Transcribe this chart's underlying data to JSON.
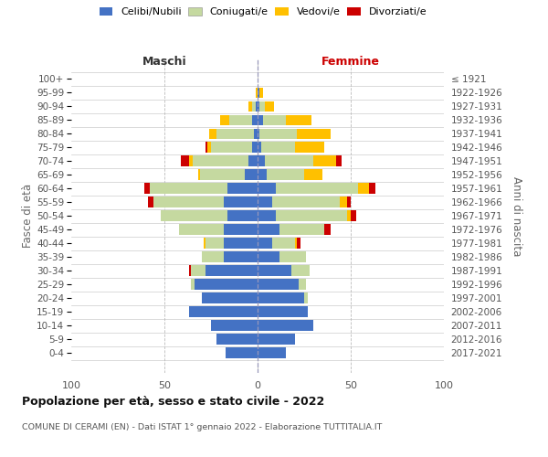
{
  "age_groups": [
    "0-4",
    "5-9",
    "10-14",
    "15-19",
    "20-24",
    "25-29",
    "30-34",
    "35-39",
    "40-44",
    "45-49",
    "50-54",
    "55-59",
    "60-64",
    "65-69",
    "70-74",
    "75-79",
    "80-84",
    "85-89",
    "90-94",
    "95-99",
    "100+"
  ],
  "birth_years": [
    "2017-2021",
    "2012-2016",
    "2007-2011",
    "2002-2006",
    "1997-2001",
    "1992-1996",
    "1987-1991",
    "1982-1986",
    "1977-1981",
    "1972-1976",
    "1967-1971",
    "1962-1966",
    "1957-1961",
    "1952-1956",
    "1947-1951",
    "1942-1946",
    "1937-1941",
    "1932-1936",
    "1927-1931",
    "1922-1926",
    "≤ 1921"
  ],
  "maschi": {
    "celibi": [
      17,
      22,
      25,
      37,
      30,
      34,
      28,
      18,
      18,
      18,
      16,
      18,
      16,
      7,
      5,
      3,
      2,
      3,
      1,
      0,
      0
    ],
    "coniugati": [
      0,
      0,
      0,
      0,
      0,
      2,
      8,
      12,
      10,
      24,
      36,
      38,
      42,
      24,
      30,
      22,
      20,
      12,
      2,
      0,
      0
    ],
    "vedovi": [
      0,
      0,
      0,
      0,
      0,
      0,
      0,
      0,
      1,
      0,
      0,
      0,
      0,
      1,
      2,
      2,
      4,
      5,
      2,
      1,
      0
    ],
    "divorziati": [
      0,
      0,
      0,
      0,
      0,
      0,
      1,
      0,
      0,
      0,
      0,
      3,
      3,
      0,
      4,
      1,
      0,
      0,
      0,
      0,
      0
    ]
  },
  "femmine": {
    "nubili": [
      15,
      20,
      30,
      27,
      25,
      22,
      18,
      12,
      8,
      12,
      10,
      8,
      10,
      5,
      4,
      2,
      1,
      3,
      1,
      1,
      0
    ],
    "coniugate": [
      0,
      0,
      0,
      0,
      2,
      4,
      10,
      14,
      12,
      24,
      38,
      36,
      44,
      20,
      26,
      18,
      20,
      12,
      3,
      0,
      0
    ],
    "vedove": [
      0,
      0,
      0,
      0,
      0,
      0,
      0,
      0,
      1,
      0,
      2,
      4,
      6,
      10,
      12,
      16,
      18,
      14,
      5,
      2,
      0
    ],
    "divorziate": [
      0,
      0,
      0,
      0,
      0,
      0,
      0,
      0,
      2,
      3,
      3,
      2,
      3,
      0,
      3,
      0,
      0,
      0,
      0,
      0,
      0
    ]
  },
  "colors": {
    "celibi": "#4472c4",
    "coniugati": "#c5d9a0",
    "vedovi": "#ffc000",
    "divorziati": "#cc0000"
  },
  "xlim": 100,
  "title": "Popolazione per età, sesso e stato civile - 2022",
  "subtitle": "COMUNE DI CERAMI (EN) - Dati ISTAT 1° gennaio 2022 - Elaborazione TUTTITALIA.IT",
  "ylabel_left": "Fasce di età",
  "ylabel_right": "Anni di nascita",
  "xlabel_maschi": "Maschi",
  "xlabel_femmine": "Femmine",
  "legend_labels": [
    "Celibi/Nubili",
    "Coniugati/e",
    "Vedovi/e",
    "Divorziati/e"
  ],
  "bg_color": "#ffffff",
  "maschi_label_color": "#333333",
  "femmine_label_color": "#cc0000"
}
